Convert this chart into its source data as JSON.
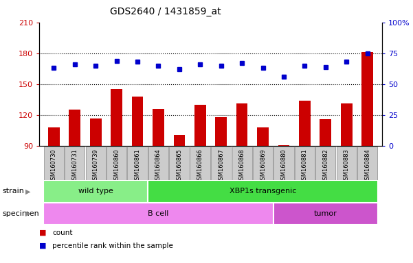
{
  "title": "GDS2640 / 1431859_at",
  "samples": [
    "GSM160730",
    "GSM160731",
    "GSM160739",
    "GSM160860",
    "GSM160861",
    "GSM160864",
    "GSM160865",
    "GSM160866",
    "GSM160867",
    "GSM160868",
    "GSM160869",
    "GSM160880",
    "GSM160881",
    "GSM160882",
    "GSM160883",
    "GSM160884"
  ],
  "bar_values": [
    108,
    125,
    117,
    145,
    138,
    126,
    101,
    130,
    118,
    131,
    108,
    91,
    134,
    116,
    131,
    181
  ],
  "dot_values": [
    63,
    66,
    65,
    69,
    68,
    65,
    62,
    66,
    65,
    67,
    63,
    56,
    65,
    64,
    68,
    75
  ],
  "bar_color": "#cc0000",
  "dot_color": "#0000cc",
  "ylim_left": [
    90,
    210
  ],
  "ylim_right": [
    0,
    100
  ],
  "yticks_left": [
    90,
    120,
    150,
    180,
    210
  ],
  "yticks_right": [
    0,
    25,
    50,
    75,
    100
  ],
  "strain_groups": [
    {
      "label": "wild type",
      "start": 0,
      "end": 5,
      "color": "#88ee88"
    },
    {
      "label": "XBP1s transgenic",
      "start": 5,
      "end": 16,
      "color": "#44dd44"
    }
  ],
  "specimen_groups": [
    {
      "label": "B cell",
      "start": 0,
      "end": 11,
      "color": "#ee88ee"
    },
    {
      "label": "tumor",
      "start": 11,
      "end": 16,
      "color": "#cc55cc"
    }
  ],
  "strain_label": "strain",
  "specimen_label": "specimen",
  "legend_count_label": "count",
  "legend_pct_label": "percentile rank within the sample",
  "tick_label_color_left": "#cc0000",
  "tick_label_color_right": "#0000cc",
  "tick_box_color": "#cccccc",
  "tick_box_edge": "#888888",
  "grid_line_color": "#000000",
  "title_fontsize": 10,
  "axis_label_fontsize": 8,
  "sample_label_fontsize": 6,
  "n_samples": 16
}
